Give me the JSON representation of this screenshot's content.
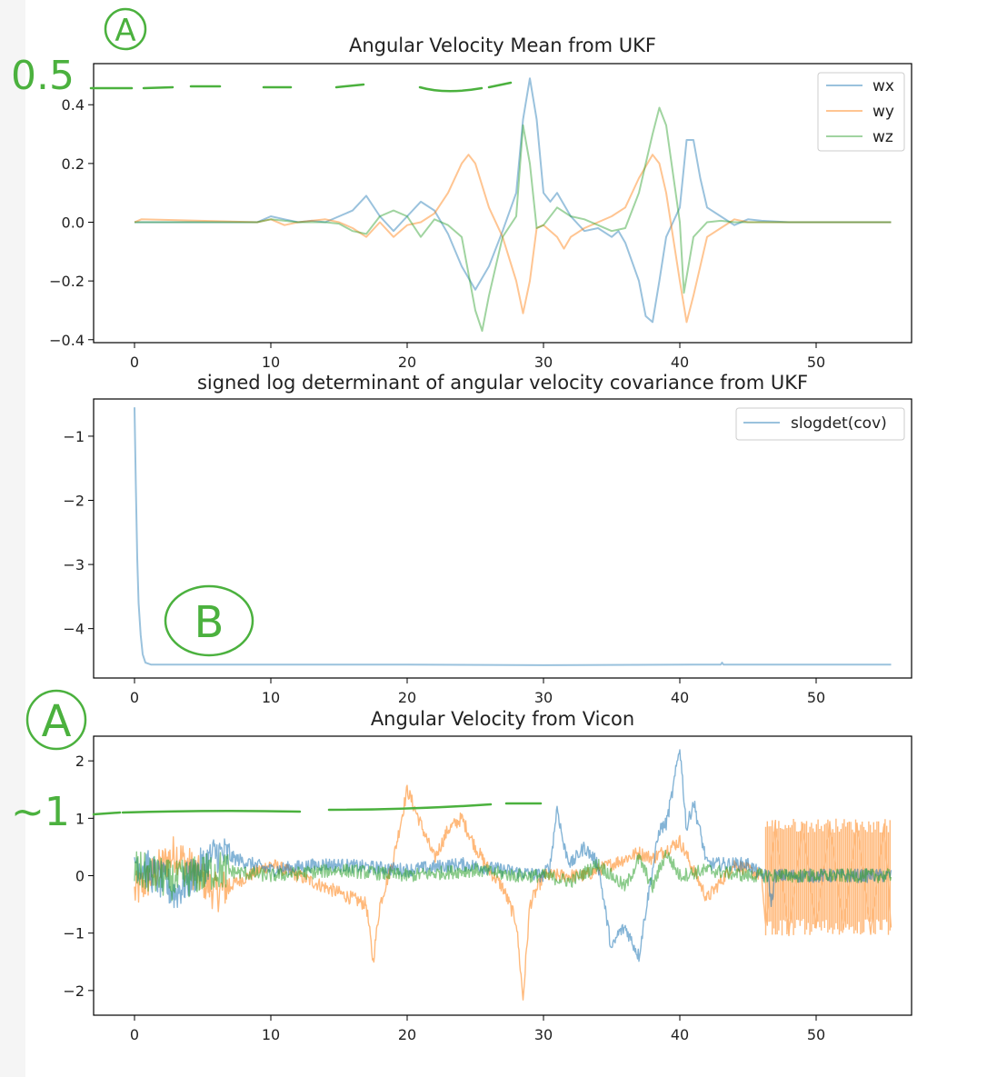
{
  "chart_data": [
    {
      "type": "line",
      "title": "Angular Velocity Mean from UKF",
      "xlim": [
        -3,
        57
      ],
      "ylim": [
        -0.41,
        0.54
      ],
      "xticks": [
        0,
        10,
        20,
        30,
        40,
        50
      ],
      "yticks": [
        0.4,
        0.2,
        0.0,
        -0.2,
        -0.4
      ],
      "ytick_labels": [
        "0.4",
        "0.2",
        "0.0",
        "−0.2",
        "−0.4"
      ],
      "legend_placement": "top-right",
      "series": [
        {
          "name": "wx",
          "color": "#1f77b4",
          "points": [
            [
              0,
              0
            ],
            [
              9,
              0
            ],
            [
              9.5,
              0.01
            ],
            [
              10,
              0.02
            ],
            [
              11,
              0.01
            ],
            [
              12,
              0
            ],
            [
              13,
              0.005
            ],
            [
              14,
              0
            ],
            [
              16,
              0.04
            ],
            [
              17,
              0.09
            ],
            [
              18,
              0.02
            ],
            [
              19,
              -0.03
            ],
            [
              20,
              0.02
            ],
            [
              21,
              0.07
            ],
            [
              22,
              0.04
            ],
            [
              23,
              -0.04
            ],
            [
              24,
              -0.15
            ],
            [
              25,
              -0.23
            ],
            [
              26,
              -0.15
            ],
            [
              27,
              -0.03
            ],
            [
              28,
              0.1
            ],
            [
              28.5,
              0.35
            ],
            [
              29,
              0.49
            ],
            [
              29.5,
              0.35
            ],
            [
              30,
              0.1
            ],
            [
              30.5,
              0.07
            ],
            [
              31,
              0.1
            ],
            [
              32,
              0.02
            ],
            [
              33,
              -0.03
            ],
            [
              34,
              -0.02
            ],
            [
              35,
              -0.05
            ],
            [
              35.5,
              -0.03
            ],
            [
              36,
              -0.07
            ],
            [
              37,
              -0.2
            ],
            [
              37.5,
              -0.32
            ],
            [
              38,
              -0.34
            ],
            [
              38.5,
              -0.2
            ],
            [
              39,
              -0.05
            ],
            [
              39.5,
              0
            ],
            [
              40,
              0.05
            ],
            [
              40.5,
              0.28
            ],
            [
              41,
              0.28
            ],
            [
              41.5,
              0.15
            ],
            [
              42,
              0.05
            ],
            [
              43,
              0.02
            ],
            [
              44,
              -0.01
            ],
            [
              45,
              0.01
            ],
            [
              46,
              0.005
            ],
            [
              48,
              0
            ],
            [
              55.5,
              0
            ]
          ]
        },
        {
          "name": "wy",
          "color": "#ff7f0e",
          "points": [
            [
              0,
              0
            ],
            [
              0.5,
              0.01
            ],
            [
              9,
              0
            ],
            [
              10,
              0.01
            ],
            [
              11,
              -0.01
            ],
            [
              12,
              0
            ],
            [
              14,
              0.01
            ],
            [
              15,
              0
            ],
            [
              16,
              -0.02
            ],
            [
              17,
              -0.05
            ],
            [
              18,
              0
            ],
            [
              19,
              -0.05
            ],
            [
              20,
              -0.01
            ],
            [
              21,
              0
            ],
            [
              22,
              0.03
            ],
            [
              23,
              0.1
            ],
            [
              24,
              0.2
            ],
            [
              24.5,
              0.23
            ],
            [
              25,
              0.2
            ],
            [
              26,
              0.05
            ],
            [
              27,
              -0.05
            ],
            [
              28,
              -0.2
            ],
            [
              28.5,
              -0.31
            ],
            [
              29,
              -0.2
            ],
            [
              29.5,
              -0.02
            ],
            [
              30,
              -0.01
            ],
            [
              31,
              -0.05
            ],
            [
              31.5,
              -0.09
            ],
            [
              32,
              -0.05
            ],
            [
              33,
              -0.02
            ],
            [
              34,
              0
            ],
            [
              35,
              0.02
            ],
            [
              36,
              0.05
            ],
            [
              37,
              0.15
            ],
            [
              38,
              0.23
            ],
            [
              38.5,
              0.2
            ],
            [
              39,
              0.1
            ],
            [
              40,
              -0.2
            ],
            [
              40.5,
              -0.34
            ],
            [
              41,
              -0.25
            ],
            [
              42,
              -0.05
            ],
            [
              43,
              -0.02
            ],
            [
              44,
              0.01
            ],
            [
              45,
              0
            ],
            [
              55.5,
              0
            ]
          ]
        },
        {
          "name": "wz",
          "color": "#2ca02c",
          "points": [
            [
              0,
              0
            ],
            [
              9,
              0
            ],
            [
              10,
              0.01
            ],
            [
              12,
              0
            ],
            [
              14,
              0
            ],
            [
              15,
              -0.005
            ],
            [
              16,
              -0.03
            ],
            [
              17,
              -0.04
            ],
            [
              18,
              0.02
            ],
            [
              19,
              0.04
            ],
            [
              20,
              0.02
            ],
            [
              21,
              -0.05
            ],
            [
              22,
              0.01
            ],
            [
              23,
              -0.01
            ],
            [
              24,
              -0.05
            ],
            [
              25,
              -0.3
            ],
            [
              25.5,
              -0.37
            ],
            [
              26,
              -0.25
            ],
            [
              27,
              -0.05
            ],
            [
              28,
              0.02
            ],
            [
              28.5,
              0.33
            ],
            [
              29,
              0.2
            ],
            [
              29.5,
              -0.02
            ],
            [
              30,
              -0.01
            ],
            [
              31,
              0.05
            ],
            [
              32,
              0.02
            ],
            [
              33,
              0.01
            ],
            [
              34,
              -0.01
            ],
            [
              35,
              -0.03
            ],
            [
              36,
              -0.02
            ],
            [
              37,
              0.1
            ],
            [
              38,
              0.3
            ],
            [
              38.5,
              0.39
            ],
            [
              39,
              0.33
            ],
            [
              40,
              0
            ],
            [
              40.3,
              -0.24
            ],
            [
              41,
              -0.05
            ],
            [
              42,
              0
            ],
            [
              43,
              0.005
            ],
            [
              44,
              0
            ],
            [
              55.5,
              0
            ]
          ]
        }
      ]
    },
    {
      "type": "line",
      "title": "signed log determinant of angular velocity covariance from UKF",
      "xlim": [
        -3,
        57
      ],
      "ylim": [
        -4.77,
        -0.42
      ],
      "xticks": [
        0,
        10,
        20,
        30,
        40,
        50
      ],
      "yticks": [
        -1,
        -2,
        -3,
        -4
      ],
      "ytick_labels": [
        "−1",
        "−2",
        "−3",
        "−4"
      ],
      "legend_placement": "top-right",
      "series": [
        {
          "name": "slogdet(cov)",
          "color": "#1f77b4",
          "points": [
            [
              0,
              -0.55
            ],
            [
              0.1,
              -1.8
            ],
            [
              0.2,
              -2.9
            ],
            [
              0.3,
              -3.6
            ],
            [
              0.45,
              -4.1
            ],
            [
              0.6,
              -4.4
            ],
            [
              0.8,
              -4.53
            ],
            [
              1.2,
              -4.56
            ],
            [
              10,
              -4.56
            ],
            [
              20,
              -4.56
            ],
            [
              30,
              -4.57
            ],
            [
              43,
              -4.56
            ],
            [
              43.1,
              -4.53
            ],
            [
              43.2,
              -4.56
            ],
            [
              55.5,
              -4.56
            ]
          ]
        }
      ]
    },
    {
      "type": "line",
      "title": "Angular Velocity from Vicon",
      "xlim": [
        -3,
        57
      ],
      "ylim": [
        -2.43,
        2.43
      ],
      "xticks": [
        0,
        10,
        20,
        30,
        40,
        50
      ],
      "yticks": [
        2,
        1,
        0,
        -1,
        -2
      ],
      "ytick_labels": [
        "2",
        "1",
        "0",
        "−1",
        "−2"
      ],
      "series": [
        {
          "color": "#ff7f0e",
          "points": [
            [
              0,
              -0.3
            ],
            [
              3,
              0.4
            ],
            [
              6,
              -0.3
            ],
            [
              10,
              0.2
            ],
            [
              14,
              -0.2
            ],
            [
              17,
              -0.5
            ],
            [
              17.5,
              -1.5
            ],
            [
              18,
              -0.5
            ],
            [
              19,
              0.3
            ],
            [
              20,
              1.5
            ],
            [
              21,
              0.9
            ],
            [
              22,
              0.3
            ],
            [
              23,
              0.8
            ],
            [
              24,
              1.0
            ],
            [
              25,
              0.5
            ],
            [
              26,
              0.1
            ],
            [
              27,
              -0.2
            ],
            [
              28,
              -0.8
            ],
            [
              28.5,
              -2.15
            ],
            [
              29,
              -0.5
            ],
            [
              30,
              0
            ],
            [
              33,
              0
            ],
            [
              35,
              0.2
            ],
            [
              37,
              0.4
            ],
            [
              38,
              0.3
            ],
            [
              40,
              0.6
            ],
            [
              42,
              -0.4
            ],
            [
              44,
              0.2
            ],
            [
              46,
              0
            ],
            [
              46.3,
              -0.9
            ],
            [
              47,
              0.9
            ],
            [
              48,
              -1.0
            ],
            [
              49,
              0.9
            ],
            [
              50,
              -0.9
            ],
            [
              51,
              0.9
            ],
            [
              52,
              -0.9
            ],
            [
              53,
              0.9
            ],
            [
              54,
              -1.0
            ],
            [
              55,
              0.9
            ],
            [
              55.5,
              -0.9
            ]
          ]
        },
        {
          "color": "#1f77b4",
          "points": [
            [
              0,
              0.3
            ],
            [
              3,
              -0.3
            ],
            [
              6,
              0.4
            ],
            [
              10,
              0.1
            ],
            [
              14,
              0.2
            ],
            [
              20,
              0.1
            ],
            [
              24,
              0.2
            ],
            [
              27,
              0.1
            ],
            [
              30,
              0
            ],
            [
              30.5,
              0.2
            ],
            [
              31,
              1.2
            ],
            [
              31.5,
              0.5
            ],
            [
              32,
              0.2
            ],
            [
              33,
              0.5
            ],
            [
              34,
              0.2
            ],
            [
              35,
              -1.3
            ],
            [
              35.5,
              -1.0
            ],
            [
              36,
              -0.9
            ],
            [
              37,
              -1.4
            ],
            [
              37.5,
              -0.6
            ],
            [
              38.5,
              0.8
            ],
            [
              39,
              0.9
            ],
            [
              39.5,
              1.5
            ],
            [
              40,
              2.25
            ],
            [
              40.5,
              0.8
            ],
            [
              41,
              1.3
            ],
            [
              42,
              0.2
            ],
            [
              45,
              0.2
            ],
            [
              46,
              0
            ],
            [
              46.5,
              0
            ],
            [
              46.7,
              -0.5
            ],
            [
              47,
              0
            ],
            [
              55.5,
              0
            ]
          ]
        },
        {
          "color": "#2ca02c",
          "points": [
            [
              0,
              0.1
            ],
            [
              3,
              -0.1
            ],
            [
              6,
              0.1
            ],
            [
              10,
              0
            ],
            [
              15,
              0.1
            ],
            [
              20,
              0
            ],
            [
              25,
              0.1
            ],
            [
              28,
              0
            ],
            [
              30,
              0
            ],
            [
              32,
              -0.1
            ],
            [
              34,
              0.2
            ],
            [
              36,
              -0.2
            ],
            [
              37,
              0.3
            ],
            [
              38,
              -0.2
            ],
            [
              39,
              0.4
            ],
            [
              40,
              0
            ],
            [
              42,
              0.1
            ],
            [
              45,
              0
            ],
            [
              55.5,
              0
            ]
          ]
        }
      ]
    }
  ],
  "annotations": {
    "a_top": "A",
    "label_05": "0.5",
    "b_mid": "B",
    "a_bottom": "A",
    "label_approx1": "~1"
  }
}
